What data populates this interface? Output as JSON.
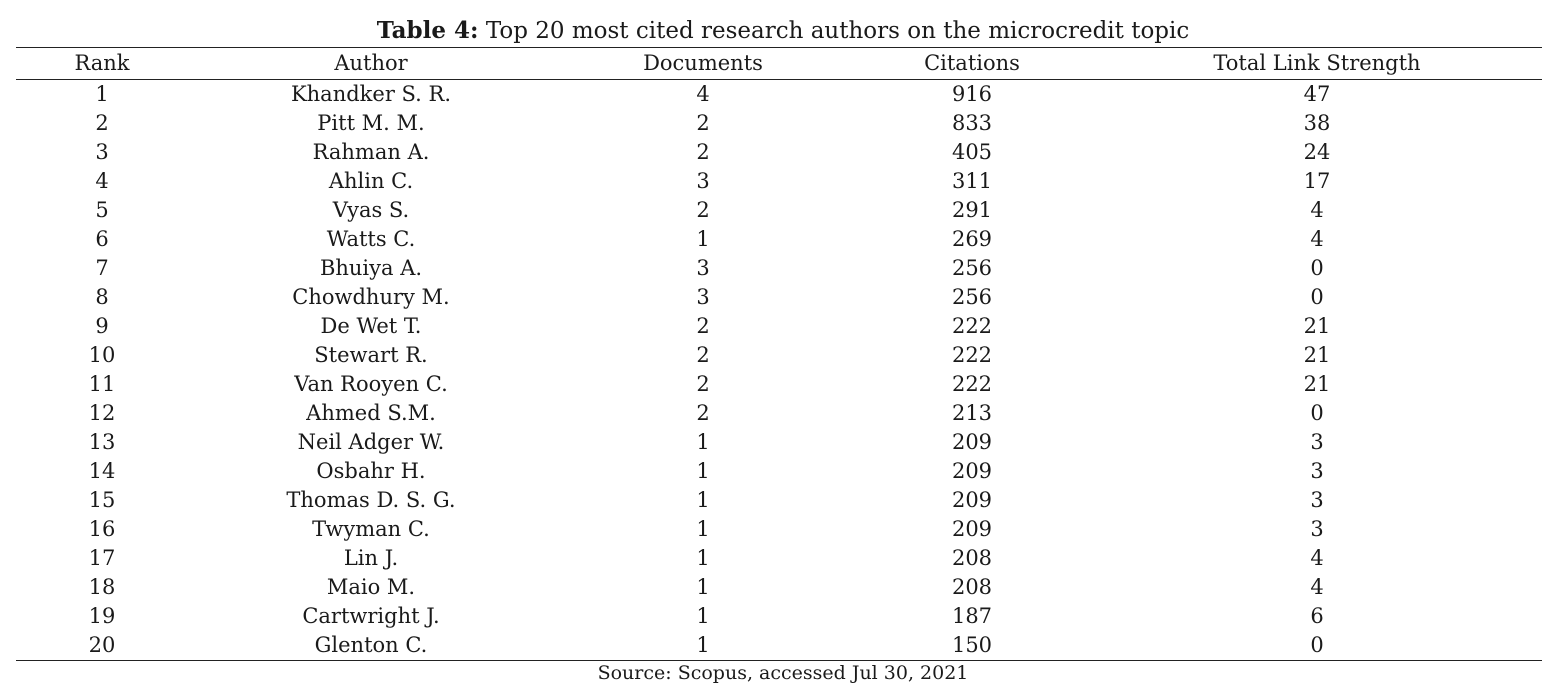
{
  "caption": {
    "label": "Table 4:",
    "text": " Top 20 most cited research authors on the microcredit topic"
  },
  "headers": [
    "Rank",
    "Author",
    "Documents",
    "Citations",
    "Total Link Strength"
  ],
  "rows": [
    [
      "1",
      "Khandker S. R.",
      "4",
      "916",
      "47"
    ],
    [
      "2",
      "Pitt M. M.",
      "2",
      "833",
      "38"
    ],
    [
      "3",
      "Rahman A.",
      "2",
      "405",
      "24"
    ],
    [
      "4",
      "Ahlin C.",
      "3",
      "311",
      "17"
    ],
    [
      "5",
      "Vyas S.",
      "2",
      "291",
      "4"
    ],
    [
      "6",
      "Watts C.",
      "1",
      "269",
      "4"
    ],
    [
      "7",
      "Bhuiya A.",
      "3",
      "256",
      "0"
    ],
    [
      "8",
      "Chowdhury M.",
      "3",
      "256",
      "0"
    ],
    [
      "9",
      "De Wet T.",
      "2",
      "222",
      "21"
    ],
    [
      "10",
      "Stewart R.",
      "2",
      "222",
      "21"
    ],
    [
      "11",
      "Van Rooyen C.",
      "2",
      "222",
      "21"
    ],
    [
      "12",
      "Ahmed S.M.",
      "2",
      "213",
      "0"
    ],
    [
      "13",
      "Neil Adger W.",
      "1",
      "209",
      "3"
    ],
    [
      "14",
      "Osbahr H.",
      "1",
      "209",
      "3"
    ],
    [
      "15",
      "Thomas D. S. G.",
      "1",
      "209",
      "3"
    ],
    [
      "16",
      "Twyman C.",
      "1",
      "209",
      "3"
    ],
    [
      "17",
      "Lin J.",
      "1",
      "208",
      "4"
    ],
    [
      "18",
      "Maio M.",
      "1",
      "208",
      "4"
    ],
    [
      "19",
      "Cartwright J.",
      "1",
      "187",
      "6"
    ],
    [
      "20",
      "Glenton C.",
      "1",
      "150",
      "0"
    ]
  ],
  "source": "Source: Scopus, accessed Jul 30, 2021"
}
